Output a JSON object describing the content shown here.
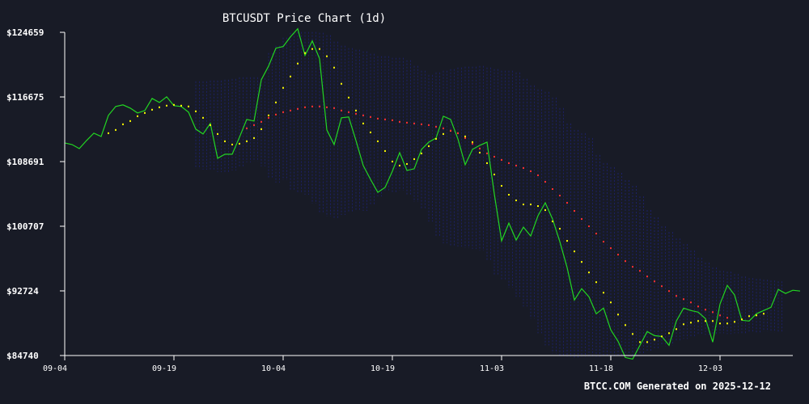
{
  "colors": {
    "background": "#181b26",
    "price_line": "#22d622",
    "ma_short": "#ffff00",
    "ma_long": "#ff3030",
    "bands": "#1c2066",
    "axis": "#ffffff",
    "text": "#ffffff"
  },
  "footer": "BTCC.COM Generated on 2025-12-12",
  "chart_data": {
    "type": "line",
    "title": "BTCUSDT Price Chart (1d)",
    "xlabel": "",
    "ylabel": "",
    "ylim": [
      84740,
      124659
    ],
    "xlim": [
      "2025-09-04",
      "2025-12-11"
    ],
    "y_ticks": [
      84740,
      92724,
      100707,
      108691,
      116675,
      124659
    ],
    "y_tick_labels": [
      "$84740",
      "$92724",
      "$100707",
      "$108691",
      "$116675",
      "$124659"
    ],
    "x_ticks": [
      "2025-09-04",
      "2025-09-19",
      "2025-10-04",
      "2025-10-19",
      "2025-11-03",
      "2025-11-18",
      "2025-12-03"
    ],
    "x_tick_labels": [
      "09-04",
      "09-19",
      "10-04",
      "10-19",
      "11-03",
      "11-18",
      "12-03"
    ],
    "grid": false,
    "legend": "none",
    "series": [
      {
        "style": "line",
        "color": "#22d622",
        "start": "2025-09-04",
        "values": [
          111000,
          110800,
          110300,
          111300,
          112200,
          111800,
          114400,
          115500,
          115700,
          115300,
          114700,
          115000,
          116500,
          116000,
          116700,
          115600,
          115500,
          114800,
          112700,
          112100,
          113400,
          109100,
          109600,
          109600,
          111700,
          113900,
          113700,
          118800,
          120500,
          122700,
          122900,
          124100,
          125100,
          121800,
          123600,
          121400,
          112600,
          110800,
          114100,
          114200,
          111300,
          108200,
          106500,
          104900,
          105500,
          107500,
          109800,
          107600,
          107800,
          110200,
          111100,
          111600,
          114300,
          113900,
          111500,
          108300,
          110200,
          110700,
          111100,
          104700,
          98900,
          101100,
          99000,
          100600,
          99500,
          102000,
          103600,
          101600,
          98800,
          95600,
          91600,
          93000,
          92000,
          89900,
          90600,
          87900,
          86500,
          84500,
          84300,
          86000,
          87700,
          87200,
          87100,
          86000,
          89000,
          90600,
          90300,
          90100,
          89300,
          86400,
          91100,
          93400,
          92200,
          89100,
          89000,
          89900,
          90300,
          90700,
          92900,
          92400,
          92800,
          92700
        ]
      },
      {
        "style": "dotted",
        "color": "#ffff00",
        "start": "2025-09-10",
        "values": [
          112200,
          112600,
          113300,
          113700,
          114300,
          114700,
          115100,
          115400,
          115600,
          115700,
          115600,
          115500,
          114900,
          114100,
          113200,
          112100,
          111200,
          110800,
          110900,
          111200,
          111600,
          112700,
          114400,
          116000,
          117800,
          119200,
          120800,
          122100,
          122600,
          122600,
          121700,
          120300,
          118300,
          116600,
          115000,
          113400,
          112300,
          111200,
          110000,
          108700,
          108200,
          108400,
          109000,
          109700,
          110600,
          111500,
          112100,
          112500,
          112200,
          111800,
          111100,
          109800,
          108500,
          107100,
          105700,
          104600,
          103900,
          103400,
          103400,
          103200,
          102700,
          101300,
          100400,
          98900,
          97600,
          96300,
          95000,
          93800,
          92500,
          91300,
          89800,
          88500,
          87400,
          86400,
          86400,
          86700,
          87100,
          87500,
          88000,
          88600,
          88800,
          89000,
          89000,
          89000,
          88700,
          88700,
          88900,
          89200,
          89600,
          89700,
          89900
        ]
      },
      {
        "style": "dotted",
        "color": "#ff3030",
        "start": "2025-09-29",
        "values": [
          112800,
          113200,
          113600,
          114100,
          114500,
          114800,
          115000,
          115200,
          115400,
          115500,
          115500,
          115400,
          115300,
          115000,
          114800,
          114600,
          114400,
          114200,
          114000,
          113900,
          113800,
          113600,
          113500,
          113400,
          113300,
          113200,
          113000,
          112800,
          112500,
          112200,
          111600,
          110900,
          110300,
          109700,
          109300,
          108900,
          108500,
          108200,
          107900,
          107500,
          107000,
          106200,
          105300,
          104500,
          103600,
          102600,
          101600,
          100700,
          99800,
          98800,
          98000,
          97200,
          96400,
          95700,
          95200,
          94500,
          93900,
          93300,
          92700,
          92100,
          91700,
          91300,
          90800,
          90400,
          90100,
          89700,
          89400
        ]
      }
    ],
    "bands_start": "2025-09-22",
    "bands_end": "2025-12-11",
    "band_lo": [
      107800,
      107700,
      107600,
      107400,
      107300,
      107600,
      108100,
      108600,
      108700,
      108100,
      106600,
      106100,
      106400,
      105100,
      104900,
      104600,
      103500,
      102400,
      101900,
      101600,
      102100,
      102400,
      102600,
      102600,
      103400,
      104400,
      105100,
      104900,
      105100,
      104500,
      103700,
      102900,
      101300,
      99400,
      98600,
      98200,
      98200,
      98000,
      97900,
      97700,
      96400,
      94600,
      94000,
      93100,
      92000,
      90800,
      89300,
      87500,
      86000,
      85000,
      84700,
      84600,
      84500,
      84600,
      84500,
      84600,
      84600,
      84600,
      84600,
      84700,
      84800,
      85000,
      85200,
      85500,
      85900,
      86000,
      86500,
      86800,
      87100,
      87300,
      87300,
      87400,
      87500,
      87400,
      87500,
      87500,
      87600,
      87600,
      87700,
      87600,
      87700
    ],
    "band_hi": [
      118600,
      118600,
      118700,
      118700,
      118800,
      118900,
      119100,
      119100,
      119100,
      119000,
      122100,
      123000,
      124000,
      124600,
      124700,
      124700,
      124700,
      124600,
      124300,
      123500,
      123000,
      122700,
      122500,
      122300,
      122000,
      121700,
      121700,
      121500,
      121500,
      121200,
      120500,
      119900,
      119400,
      119700,
      119900,
      120100,
      120300,
      120400,
      120400,
      120500,
      120300,
      120100,
      119900,
      119900,
      119700,
      118900,
      118100,
      117600,
      117300,
      116600,
      115300,
      113400,
      112600,
      112200,
      111600,
      109500,
      108500,
      108000,
      107300,
      106400,
      105700,
      104400,
      102700,
      101800,
      100700,
      100000,
      99200,
      98500,
      97700,
      96800,
      96200,
      95600,
      95200,
      95100,
      94800,
      94500,
      94300,
      94200,
      94100,
      94000,
      93900
    ]
  }
}
